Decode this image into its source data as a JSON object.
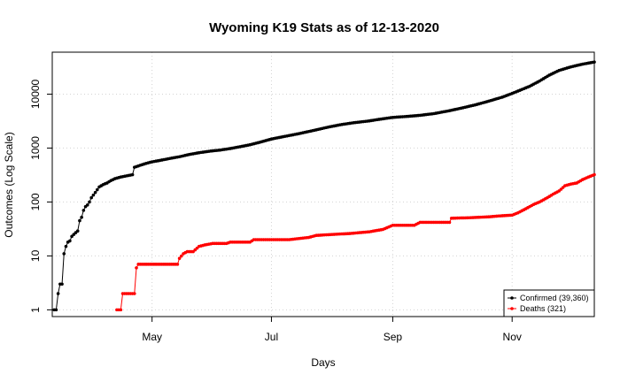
{
  "chart_data": {
    "type": "line",
    "title": "Wyoming K19 Stats as of 12-13-2020",
    "xlabel": "Days",
    "ylabel": "Outcomes (Log Scale)",
    "y_scale": "log",
    "ylim": [
      0.75,
      60000
    ],
    "xlim": [
      "2020-03-11",
      "2020-12-13"
    ],
    "grid": true,
    "legend_position": "bottom-right",
    "x_ticks": [
      {
        "label": "May",
        "date": "2020-05-01"
      },
      {
        "label": "Jul",
        "date": "2020-07-01"
      },
      {
        "label": "Sep",
        "date": "2020-09-01"
      },
      {
        "label": "Nov",
        "date": "2020-11-01"
      }
    ],
    "y_ticks": [
      {
        "label": "1",
        "value": 1
      },
      {
        "label": "10",
        "value": 10
      },
      {
        "label": "100",
        "value": 100
      },
      {
        "label": "1000",
        "value": 1000
      },
      {
        "label": "10000",
        "value": 10000
      }
    ],
    "series": [
      {
        "name": "Confirmed (39,360)",
        "color": "#000000",
        "points": [
          [
            "2020-03-12",
            1
          ],
          [
            "2020-03-13",
            1
          ],
          [
            "2020-03-14",
            2
          ],
          [
            "2020-03-15",
            3
          ],
          [
            "2020-03-16",
            3
          ],
          [
            "2020-03-17",
            11
          ],
          [
            "2020-03-18",
            15
          ],
          [
            "2020-03-19",
            18
          ],
          [
            "2020-03-20",
            19
          ],
          [
            "2020-03-21",
            23
          ],
          [
            "2020-03-22",
            25
          ],
          [
            "2020-03-23",
            27
          ],
          [
            "2020-03-24",
            29
          ],
          [
            "2020-03-25",
            45
          ],
          [
            "2020-03-26",
            52
          ],
          [
            "2020-03-27",
            70
          ],
          [
            "2020-03-28",
            82
          ],
          [
            "2020-03-29",
            88
          ],
          [
            "2020-03-30",
            100
          ],
          [
            "2020-03-31",
            120
          ],
          [
            "2020-04-02",
            150
          ],
          [
            "2020-04-04",
            190
          ],
          [
            "2020-04-06",
            210
          ],
          [
            "2020-04-08",
            225
          ],
          [
            "2020-04-10",
            250
          ],
          [
            "2020-04-12",
            270
          ],
          [
            "2020-04-15",
            290
          ],
          [
            "2020-04-18",
            305
          ],
          [
            "2020-04-21",
            320
          ],
          [
            "2020-04-22",
            440
          ],
          [
            "2020-04-25",
            480
          ],
          [
            "2020-04-28",
            520
          ],
          [
            "2020-05-01",
            555
          ],
          [
            "2020-05-05",
            590
          ],
          [
            "2020-05-10",
            640
          ],
          [
            "2020-05-15",
            690
          ],
          [
            "2020-05-20",
            760
          ],
          [
            "2020-05-25",
            820
          ],
          [
            "2020-05-31",
            880
          ],
          [
            "2020-06-05",
            920
          ],
          [
            "2020-06-10",
            980
          ],
          [
            "2020-06-15",
            1060
          ],
          [
            "2020-06-20",
            1150
          ],
          [
            "2020-06-25",
            1280
          ],
          [
            "2020-07-01",
            1470
          ],
          [
            "2020-07-08",
            1650
          ],
          [
            "2020-07-15",
            1850
          ],
          [
            "2020-07-22",
            2100
          ],
          [
            "2020-07-29",
            2400
          ],
          [
            "2020-08-05",
            2700
          ],
          [
            "2020-08-12",
            2950
          ],
          [
            "2020-08-19",
            3150
          ],
          [
            "2020-08-26",
            3450
          ],
          [
            "2020-09-01",
            3700
          ],
          [
            "2020-09-08",
            3850
          ],
          [
            "2020-09-15",
            4050
          ],
          [
            "2020-09-22",
            4350
          ],
          [
            "2020-09-29",
            4850
          ],
          [
            "2020-10-06",
            5500
          ],
          [
            "2020-10-13",
            6300
          ],
          [
            "2020-10-20",
            7400
          ],
          [
            "2020-10-27",
            8800
          ],
          [
            "2020-11-01",
            10300
          ],
          [
            "2020-11-05",
            11800
          ],
          [
            "2020-11-10",
            14000
          ],
          [
            "2020-11-15",
            17500
          ],
          [
            "2020-11-20",
            22500
          ],
          [
            "2020-11-25",
            27500
          ],
          [
            "2020-12-01",
            32000
          ],
          [
            "2020-12-07",
            36000
          ],
          [
            "2020-12-13",
            39360
          ]
        ]
      },
      {
        "name": "Deaths (321)",
        "color": "#ff0000",
        "points": [
          [
            "2020-04-13",
            1
          ],
          [
            "2020-04-14",
            1
          ],
          [
            "2020-04-15",
            1
          ],
          [
            "2020-04-16",
            2
          ],
          [
            "2020-04-18",
            2
          ],
          [
            "2020-04-20",
            2
          ],
          [
            "2020-04-22",
            2
          ],
          [
            "2020-04-23",
            6
          ],
          [
            "2020-04-24",
            7
          ],
          [
            "2020-04-27",
            7
          ],
          [
            "2020-05-01",
            7
          ],
          [
            "2020-05-05",
            7
          ],
          [
            "2020-05-10",
            7
          ],
          [
            "2020-05-14",
            7
          ],
          [
            "2020-05-15",
            9
          ],
          [
            "2020-05-17",
            11
          ],
          [
            "2020-05-19",
            12
          ],
          [
            "2020-05-22",
            12
          ],
          [
            "2020-05-25",
            15
          ],
          [
            "2020-05-28",
            16
          ],
          [
            "2020-06-01",
            17
          ],
          [
            "2020-06-08",
            17
          ],
          [
            "2020-06-10",
            18
          ],
          [
            "2020-06-20",
            18
          ],
          [
            "2020-06-22",
            20
          ],
          [
            "2020-07-10",
            20
          ],
          [
            "2020-07-15",
            21
          ],
          [
            "2020-07-20",
            22
          ],
          [
            "2020-07-24",
            24
          ],
          [
            "2020-08-01",
            25
          ],
          [
            "2020-08-10",
            26
          ],
          [
            "2020-08-20",
            28
          ],
          [
            "2020-08-27",
            31
          ],
          [
            "2020-09-01",
            37
          ],
          [
            "2020-09-12",
            37
          ],
          [
            "2020-09-15",
            42
          ],
          [
            "2020-09-30",
            42
          ],
          [
            "2020-10-01",
            50
          ],
          [
            "2020-10-10",
            51
          ],
          [
            "2020-10-15",
            52
          ],
          [
            "2020-10-20",
            53
          ],
          [
            "2020-10-25",
            55
          ],
          [
            "2020-11-01",
            57
          ],
          [
            "2020-11-04",
            63
          ],
          [
            "2020-11-08",
            75
          ],
          [
            "2020-11-12",
            90
          ],
          [
            "2020-11-15",
            100
          ],
          [
            "2020-11-19",
            120
          ],
          [
            "2020-11-22",
            140
          ],
          [
            "2020-11-25",
            160
          ],
          [
            "2020-11-28",
            200
          ],
          [
            "2020-12-01",
            215
          ],
          [
            "2020-12-04",
            225
          ],
          [
            "2020-12-07",
            260
          ],
          [
            "2020-12-09",
            280
          ],
          [
            "2020-12-11",
            300
          ],
          [
            "2020-12-13",
            321
          ]
        ]
      }
    ]
  }
}
